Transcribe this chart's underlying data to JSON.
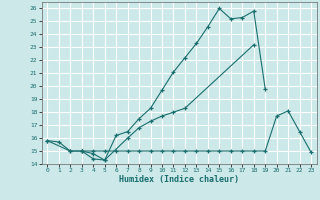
{
  "xlabel": "Humidex (Indice chaleur)",
  "bg_color": "#cce8e8",
  "grid_color": "#ffffff",
  "line_color": "#1a6e6e",
  "xlim": [
    -0.5,
    23.5
  ],
  "ylim": [
    14,
    26.5
  ],
  "xticks": [
    0,
    1,
    2,
    3,
    4,
    5,
    6,
    7,
    8,
    9,
    10,
    11,
    12,
    13,
    14,
    15,
    16,
    17,
    18,
    19,
    20,
    21,
    22,
    23
  ],
  "yticks": [
    14,
    15,
    16,
    17,
    18,
    19,
    20,
    21,
    22,
    23,
    24,
    25,
    26
  ],
  "series": [
    {
      "x": [
        0,
        1,
        2,
        3,
        4,
        5,
        6,
        7,
        8,
        9,
        10,
        11,
        12,
        13,
        14,
        15,
        16,
        17,
        18,
        19
      ],
      "y": [
        15.8,
        15.7,
        15.0,
        15.0,
        14.4,
        14.3,
        16.2,
        16.5,
        17.5,
        18.3,
        19.7,
        21.1,
        22.2,
        23.3,
        24.6,
        26.0,
        25.2,
        25.3,
        25.8,
        19.8
      ]
    },
    {
      "x": [
        0,
        2,
        3,
        4,
        5,
        7,
        8,
        9,
        10,
        11,
        12,
        18
      ],
      "y": [
        15.8,
        15.0,
        15.0,
        14.8,
        14.3,
        16.0,
        16.8,
        17.3,
        17.7,
        18.0,
        18.3,
        23.2
      ]
    },
    {
      "x": [
        3,
        4,
        5,
        6,
        7,
        8,
        9,
        10,
        11,
        12,
        13,
        14,
        15,
        16,
        17,
        18,
        19,
        20,
        21,
        22,
        23
      ],
      "y": [
        15.0,
        15.0,
        15.0,
        15.0,
        15.0,
        15.0,
        15.0,
        15.0,
        15.0,
        15.0,
        15.0,
        15.0,
        15.0,
        15.0,
        15.0,
        15.0,
        15.0,
        17.7,
        18.1,
        16.5,
        14.9
      ]
    }
  ]
}
